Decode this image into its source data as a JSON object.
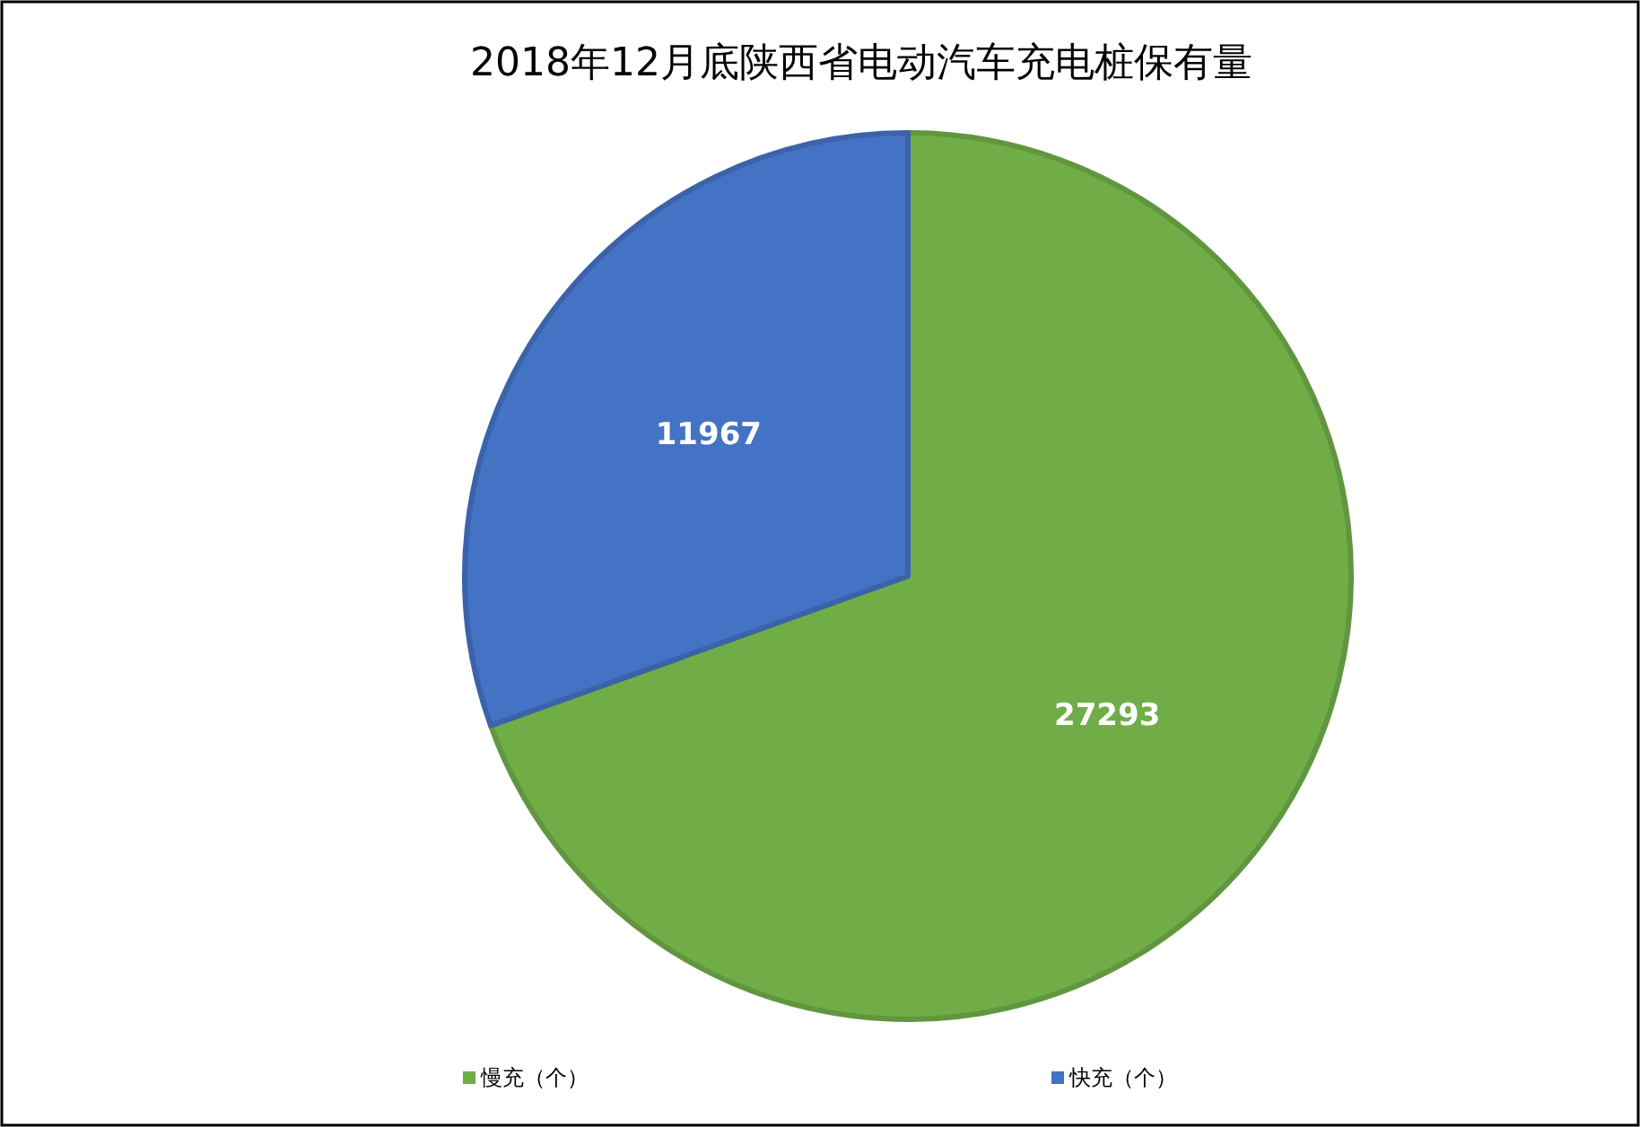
{
  "chart_data": {
    "type": "pie",
    "title": "2018年12月底陕西省电动汽车充电桩保有量",
    "categories": [
      "慢充（个）",
      "快充（个）"
    ],
    "values": [
      27293,
      11967
    ],
    "colors": [
      "#70ad47",
      "#4472c4"
    ],
    "data_labels": true,
    "legend": "bottom"
  }
}
